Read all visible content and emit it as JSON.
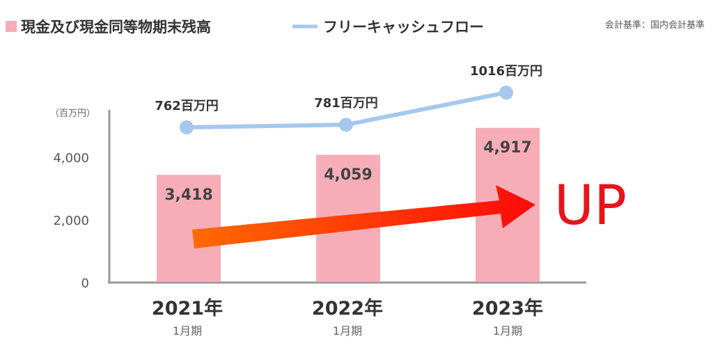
{
  "chart_data": {
    "type": "bar",
    "categories": [
      "2021年",
      "2022年",
      "2023年"
    ],
    "category_sublabels": [
      "1月期",
      "1月期",
      "1月期"
    ],
    "series": [
      {
        "name": "現金及び現金同等物期末残高",
        "type": "bar",
        "color": "#f7adb8",
        "values": [
          3418,
          4059,
          4917
        ],
        "value_labels": [
          "3,418",
          "4,059",
          "4,917"
        ]
      },
      {
        "name": "フリーキャッシュフロー",
        "type": "line",
        "color": "#a6c8ef",
        "values": [
          762,
          781,
          1016
        ],
        "value_labels": [
          "762百万円",
          "781百万円",
          "1016百万円"
        ]
      }
    ],
    "yunit": "（百万円）",
    "yticks": [
      "0",
      "2,000",
      "4,000"
    ],
    "ylim": [
      0,
      5000
    ],
    "grid": false,
    "legend_position": "top-left"
  },
  "note": "会計基準：国内会計基準",
  "annotation": {
    "text": "UP",
    "color": "#e8141b",
    "arrow_colors": [
      "#ff6a00",
      "#ff0a0a"
    ]
  },
  "axis_color": "#999999"
}
